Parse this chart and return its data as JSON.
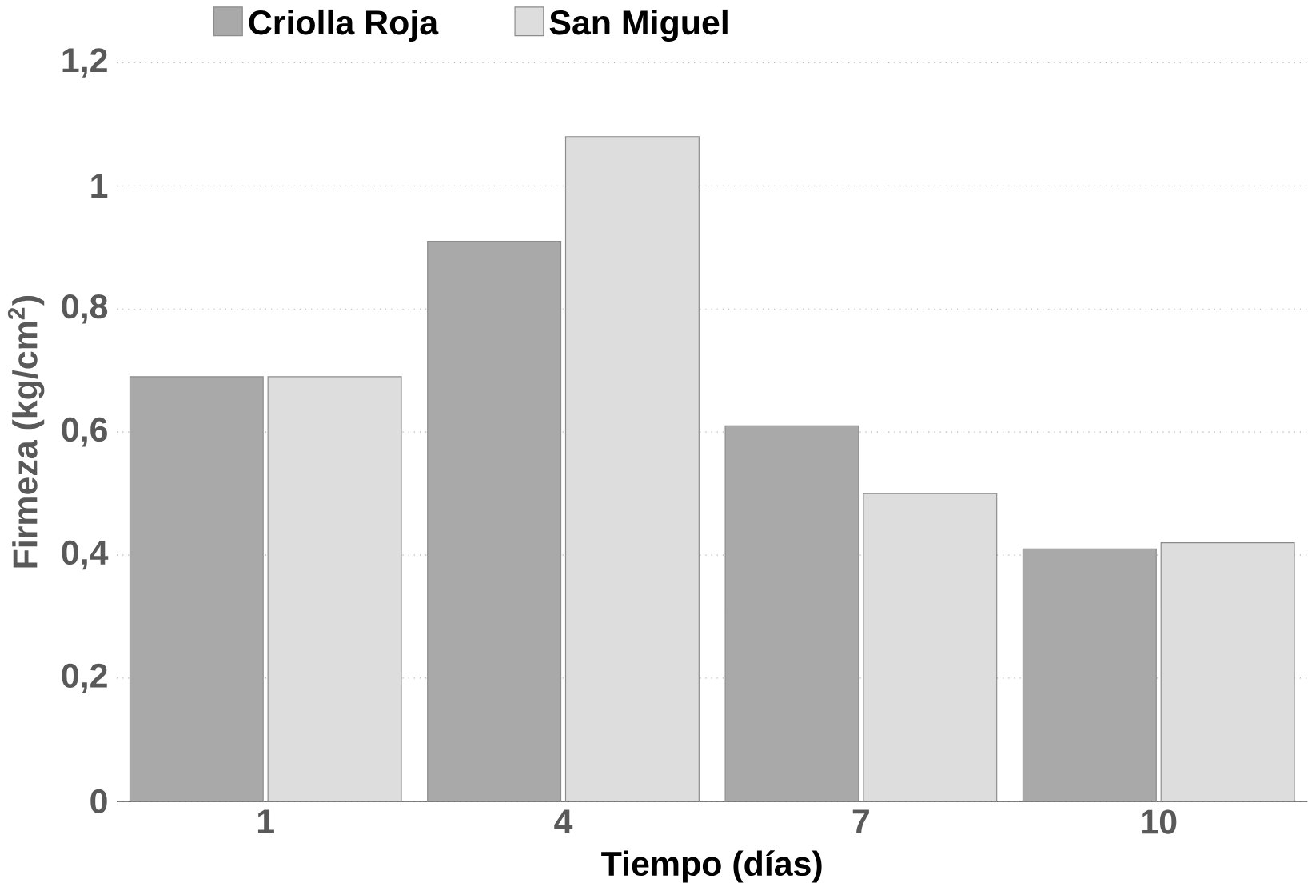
{
  "chart_data": {
    "type": "bar",
    "xlabel": "Tiempo (días)",
    "ylabel": "Firmeza (kg/cm$^{2}$)",
    "categories": [
      "1",
      "4",
      "7",
      "10"
    ],
    "series": [
      {
        "name": "Criolla Roja",
        "color": "#a9a9a9",
        "values": [
          0.69,
          0.91,
          0.61,
          0.41
        ]
      },
      {
        "name": "San Miguel",
        "color": "#dddddd",
        "values": [
          0.69,
          1.08,
          0.5,
          0.42
        ]
      }
    ],
    "ylim": [
      0,
      1.2
    ],
    "yticks": [
      0,
      {
        "value": 0.2,
        "label": "0,2"
      },
      {
        "value": 0.4,
        "label": "0,4"
      },
      {
        "value": 0.6,
        "label": "0,6"
      },
      {
        "value": 0.8,
        "label": "0,8"
      },
      1,
      {
        "value": 1.2,
        "label": "1,2"
      }
    ],
    "grid": "y",
    "legend": "top"
  }
}
